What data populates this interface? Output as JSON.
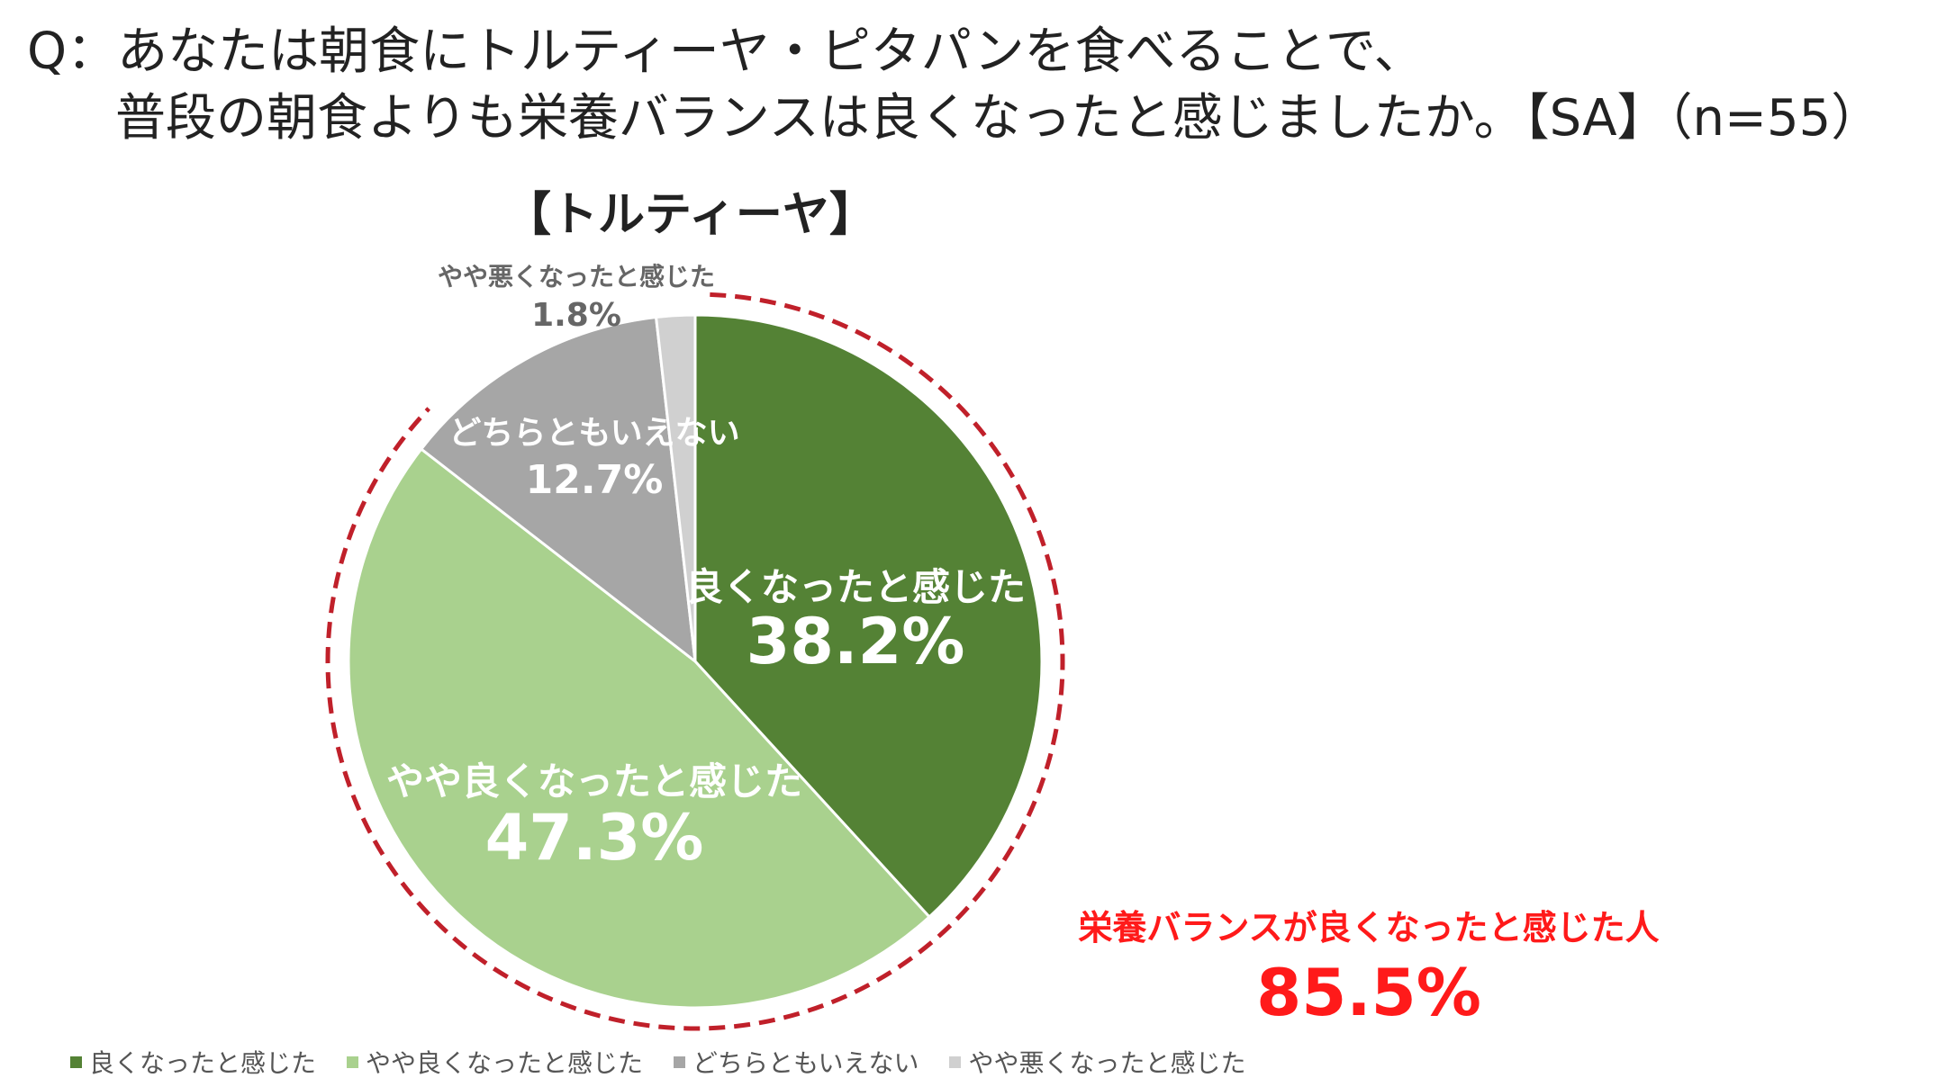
{
  "question": {
    "line1": "Q：あなたは朝食にトルティーヤ・ピタパンを食べることで、",
    "line2": "普段の朝食よりも栄養バランスは良くなったと感じましたか。【SA】（n=55）"
  },
  "chart_title": "【トルティーヤ】",
  "callout": {
    "label": "栄養バランスが良くなったと感じた人",
    "value": "85.5%",
    "color": "#ff1a1a"
  },
  "chart_data": {
    "type": "pie",
    "title": "【トルティーヤ】",
    "start": "top",
    "direction": "clockwise",
    "slices": [
      {
        "label": "良くなったと感じた",
        "value": 38.2,
        "value_label": "38.2%",
        "color": "#548235"
      },
      {
        "label": "やや良くなったと感じた",
        "value": 47.3,
        "value_label": "47.3%",
        "color": "#a9d18e"
      },
      {
        "label": "どちらともいえない",
        "value": 12.7,
        "value_label": "12.7%",
        "color": "#a6a6a6"
      },
      {
        "label": "やや悪くなったと感じた",
        "value": 1.8,
        "value_label": "1.8%",
        "color": "#d0d0d0"
      }
    ],
    "legend_position": "bottom"
  },
  "legend": [
    {
      "label": "良くなったと感じた",
      "color": "#548235"
    },
    {
      "label": "やや良くなったと感じた",
      "color": "#a9d18e"
    },
    {
      "label": "どちらともいえない",
      "color": "#a6a6a6"
    },
    {
      "label": "やや悪くなったと感じた",
      "color": "#d0d0d0"
    }
  ]
}
